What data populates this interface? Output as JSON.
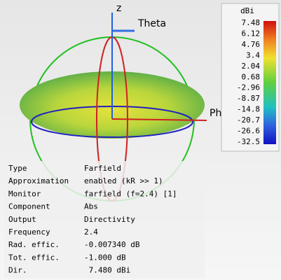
{
  "axes": {
    "z": "z",
    "theta": "Theta",
    "phi": "Phi"
  },
  "colorbar": {
    "unit": "dBi",
    "labels": [
      "7.48",
      "6.12",
      "4.76",
      "3.4",
      "2.04",
      "0.68",
      "-2.96",
      "-8.87",
      "-14.8",
      "-20.7",
      "-26.6",
      "-32.5"
    ]
  },
  "info": {
    "rows": [
      [
        "Type",
        "Farfield"
      ],
      [
        "Approximation",
        "enabled (kR >> 1)"
      ],
      [
        "Monitor",
        "farfield (f=2.4) [1]"
      ],
      [
        "Component",
        "Abs"
      ],
      [
        "Output",
        "Directivity"
      ],
      [
        "Frequency",
        "2.4"
      ],
      [
        "Rad. effic.",
        "-0.007340 dB"
      ],
      [
        "Tot. effic.",
        "-1.000 dB"
      ],
      [
        "Dir.",
        " 7.480 dBi"
      ]
    ]
  }
}
